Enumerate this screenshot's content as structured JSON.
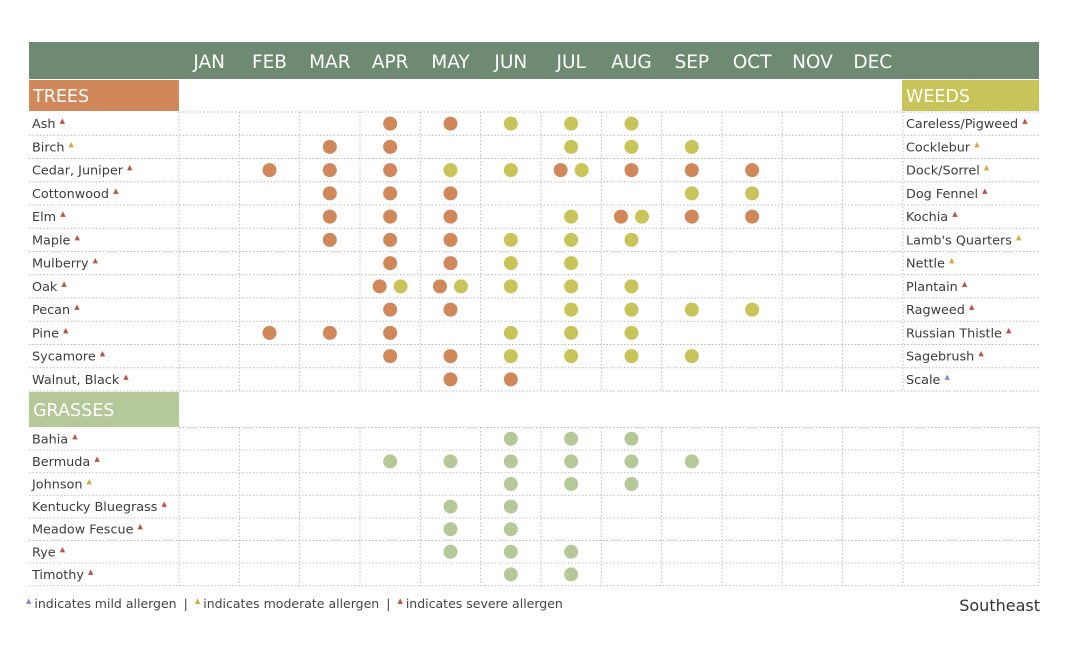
{
  "chart_data": {
    "type": "table",
    "months": [
      "JAN",
      "FEB",
      "MAR",
      "APR",
      "MAY",
      "JUN",
      "JUL",
      "AUG",
      "SEP",
      "OCT",
      "NOV",
      "DEC"
    ],
    "colors": {
      "header": "#6f8a72",
      "trees": "#d0885a",
      "grasses": "#b5c898",
      "weeds": "#c8c45a",
      "mild": "#7f8ec4",
      "moderate": "#d9a640",
      "severe": "#c05040"
    },
    "sections": {
      "trees": {
        "title": "TREES",
        "rows": [
          {
            "name": "Ash",
            "severity": "severe",
            "marks": [
              {
                "m": 4,
                "c": "trees"
              },
              {
                "m": 5,
                "c": "trees"
              },
              {
                "m": 6,
                "c": "weeds"
              },
              {
                "m": 7,
                "c": "weeds"
              },
              {
                "m": 8,
                "c": "weeds"
              }
            ]
          },
          {
            "name": "Birch",
            "severity": "moderate",
            "marks": [
              {
                "m": 3,
                "c": "trees"
              },
              {
                "m": 4,
                "c": "trees"
              },
              {
                "m": 7,
                "c": "weeds"
              },
              {
                "m": 8,
                "c": "weeds"
              },
              {
                "m": 9,
                "c": "weeds"
              }
            ]
          },
          {
            "name": "Cedar, Juniper",
            "severity": "severe",
            "marks": [
              {
                "m": 2,
                "c": "trees"
              },
              {
                "m": 3,
                "c": "trees"
              },
              {
                "m": 4,
                "c": "trees"
              },
              {
                "m": 5,
                "c": "weeds"
              },
              {
                "m": 6,
                "c": "weeds"
              },
              {
                "m": 7,
                "c": "trees",
                "p": -1
              },
              {
                "m": 7,
                "c": "weeds",
                "p": 1
              },
              {
                "m": 8,
                "c": "trees"
              },
              {
                "m": 9,
                "c": "trees"
              },
              {
                "m": 10,
                "c": "trees"
              }
            ]
          },
          {
            "name": "Cottonwood",
            "severity": "severe",
            "marks": [
              {
                "m": 3,
                "c": "trees"
              },
              {
                "m": 4,
                "c": "trees"
              },
              {
                "m": 5,
                "c": "trees"
              },
              {
                "m": 9,
                "c": "weeds"
              },
              {
                "m": 10,
                "c": "weeds"
              }
            ]
          },
          {
            "name": "Elm",
            "severity": "severe",
            "marks": [
              {
                "m": 3,
                "c": "trees"
              },
              {
                "m": 4,
                "c": "trees"
              },
              {
                "m": 5,
                "c": "trees"
              },
              {
                "m": 7,
                "c": "weeds"
              },
              {
                "m": 8,
                "c": "trees",
                "p": -1
              },
              {
                "m": 8,
                "c": "weeds",
                "p": 1
              },
              {
                "m": 9,
                "c": "trees"
              },
              {
                "m": 10,
                "c": "trees"
              }
            ]
          },
          {
            "name": "Maple",
            "severity": "severe",
            "marks": [
              {
                "m": 3,
                "c": "trees"
              },
              {
                "m": 4,
                "c": "trees"
              },
              {
                "m": 5,
                "c": "trees"
              },
              {
                "m": 6,
                "c": "weeds"
              },
              {
                "m": 7,
                "c": "weeds"
              },
              {
                "m": 8,
                "c": "weeds"
              }
            ]
          },
          {
            "name": "Mulberry",
            "severity": "severe",
            "marks": [
              {
                "m": 4,
                "c": "trees"
              },
              {
                "m": 5,
                "c": "trees"
              },
              {
                "m": 6,
                "c": "weeds"
              },
              {
                "m": 7,
                "c": "weeds"
              }
            ]
          },
          {
            "name": "Oak",
            "severity": "severe",
            "marks": [
              {
                "m": 4,
                "c": "trees",
                "p": -1
              },
              {
                "m": 4,
                "c": "weeds",
                "p": 1
              },
              {
                "m": 5,
                "c": "trees",
                "p": -1
              },
              {
                "m": 5,
                "c": "weeds",
                "p": 1
              },
              {
                "m": 6,
                "c": "weeds"
              },
              {
                "m": 7,
                "c": "weeds"
              },
              {
                "m": 8,
                "c": "weeds"
              }
            ]
          },
          {
            "name": "Pecan",
            "severity": "severe",
            "marks": [
              {
                "m": 4,
                "c": "trees"
              },
              {
                "m": 5,
                "c": "trees"
              },
              {
                "m": 7,
                "c": "weeds"
              },
              {
                "m": 8,
                "c": "weeds"
              },
              {
                "m": 9,
                "c": "weeds"
              },
              {
                "m": 10,
                "c": "weeds"
              }
            ]
          },
          {
            "name": "Pine",
            "severity": "severe",
            "marks": [
              {
                "m": 2,
                "c": "trees"
              },
              {
                "m": 3,
                "c": "trees"
              },
              {
                "m": 4,
                "c": "trees"
              },
              {
                "m": 6,
                "c": "weeds"
              },
              {
                "m": 7,
                "c": "weeds"
              },
              {
                "m": 8,
                "c": "weeds"
              }
            ]
          },
          {
            "name": "Sycamore",
            "severity": "severe",
            "marks": [
              {
                "m": 4,
                "c": "trees"
              },
              {
                "m": 5,
                "c": "trees"
              },
              {
                "m": 6,
                "c": "weeds"
              },
              {
                "m": 7,
                "c": "weeds"
              },
              {
                "m": 8,
                "c": "weeds"
              },
              {
                "m": 9,
                "c": "weeds"
              }
            ]
          },
          {
            "name": "Walnut, Black",
            "severity": "severe",
            "marks": [
              {
                "m": 5,
                "c": "trees"
              },
              {
                "m": 6,
                "c": "trees"
              }
            ]
          }
        ]
      },
      "grasses": {
        "title": "GRASSES",
        "rows": [
          {
            "name": "Bahia",
            "severity": "severe",
            "marks": [
              {
                "m": 6,
                "c": "grasses"
              },
              {
                "m": 7,
                "c": "grasses"
              },
              {
                "m": 8,
                "c": "grasses"
              }
            ]
          },
          {
            "name": "Bermuda",
            "severity": "severe",
            "marks": [
              {
                "m": 4,
                "c": "grasses"
              },
              {
                "m": 5,
                "c": "grasses"
              },
              {
                "m": 6,
                "c": "grasses"
              },
              {
                "m": 7,
                "c": "grasses"
              },
              {
                "m": 8,
                "c": "grasses"
              },
              {
                "m": 9,
                "c": "grasses"
              }
            ]
          },
          {
            "name": "Johnson",
            "severity": "moderate",
            "marks": [
              {
                "m": 6,
                "c": "grasses"
              },
              {
                "m": 7,
                "c": "grasses"
              },
              {
                "m": 8,
                "c": "grasses"
              }
            ]
          },
          {
            "name": "Kentucky Bluegrass",
            "severity": "severe",
            "marks": [
              {
                "m": 5,
                "c": "grasses"
              },
              {
                "m": 6,
                "c": "grasses"
              }
            ]
          },
          {
            "name": "Meadow Fescue",
            "severity": "severe",
            "marks": [
              {
                "m": 5,
                "c": "grasses"
              },
              {
                "m": 6,
                "c": "grasses"
              }
            ]
          },
          {
            "name": "Rye",
            "severity": "severe",
            "marks": [
              {
                "m": 5,
                "c": "grasses"
              },
              {
                "m": 6,
                "c": "grasses"
              },
              {
                "m": 7,
                "c": "grasses"
              }
            ]
          },
          {
            "name": "Timothy",
            "severity": "severe",
            "marks": [
              {
                "m": 6,
                "c": "grasses"
              },
              {
                "m": 7,
                "c": "grasses"
              }
            ]
          }
        ]
      },
      "weeds": {
        "title": "WEEDS",
        "rows": [
          {
            "name": "Careless/Pigweed",
            "severity": "severe"
          },
          {
            "name": "Cocklebur",
            "severity": "moderate"
          },
          {
            "name": "Dock/Sorrel",
            "severity": "moderate"
          },
          {
            "name": "Dog Fennel",
            "severity": "severe"
          },
          {
            "name": "Kochia",
            "severity": "severe"
          },
          {
            "name": "Lamb's Quarters",
            "severity": "moderate"
          },
          {
            "name": "Nettle",
            "severity": "moderate"
          },
          {
            "name": "Plantain",
            "severity": "severe"
          },
          {
            "name": "Ragweed",
            "severity": "severe"
          },
          {
            "name": "Russian Thistle",
            "severity": "severe"
          },
          {
            "name": "Sagebrush",
            "severity": "severe"
          },
          {
            "name": "Scale",
            "severity": "mild"
          }
        ]
      }
    }
  },
  "legend": {
    "mild_text": "indicates mild allergen",
    "moderate_text": "indicates moderate allergen",
    "severe_text": "indicates severe allergen",
    "separator": "|"
  },
  "region": "Southeast"
}
